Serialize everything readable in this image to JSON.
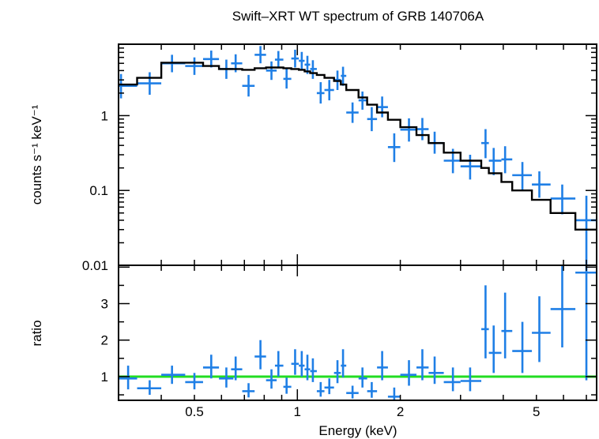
{
  "chart_data": [
    {
      "type": "scatter",
      "panel": "spectrum",
      "title": "Swift–XRT WT spectrum of GRB 140706A",
      "xlabel": "Energy (keV)",
      "ylabel": "counts s⁻¹ keV⁻¹",
      "xscale": "log",
      "yscale": "log",
      "xlim": [
        0.3,
        7.5
      ],
      "ylim": [
        0.01,
        9
      ],
      "y_ticks": [
        "0.01",
        "0.1",
        "1"
      ],
      "x_ticks": [
        "0.5",
        "1",
        "2",
        "5"
      ],
      "grid": false,
      "series": [
        {
          "kind": "data_with_errors",
          "color": "#1f7fe6",
          "points": [
            {
              "x": 0.305,
              "xlo": 0.3,
              "xhi": 0.34,
              "y": 2.5,
              "ylo": 1.7,
              "yhi": 3.6
            },
            {
              "x": 0.37,
              "xlo": 0.34,
              "xhi": 0.4,
              "y": 2.7,
              "ylo": 1.9,
              "yhi": 3.8
            },
            {
              "x": 0.43,
              "xlo": 0.4,
              "xhi": 0.47,
              "y": 5.0,
              "ylo": 3.8,
              "yhi": 6.5
            },
            {
              "x": 0.5,
              "xlo": 0.47,
              "xhi": 0.53,
              "y": 4.6,
              "ylo": 3.5,
              "yhi": 6.0
            },
            {
              "x": 0.56,
              "xlo": 0.53,
              "xhi": 0.59,
              "y": 5.7,
              "ylo": 4.4,
              "yhi": 7.4
            },
            {
              "x": 0.62,
              "xlo": 0.59,
              "xhi": 0.65,
              "y": 4.2,
              "ylo": 3.1,
              "yhi": 5.6
            },
            {
              "x": 0.66,
              "xlo": 0.64,
              "xhi": 0.69,
              "y": 5.0,
              "ylo": 3.8,
              "yhi": 6.6
            },
            {
              "x": 0.72,
              "xlo": 0.69,
              "xhi": 0.75,
              "y": 2.5,
              "ylo": 1.8,
              "yhi": 3.5
            },
            {
              "x": 0.78,
              "xlo": 0.75,
              "xhi": 0.81,
              "y": 6.5,
              "ylo": 5.0,
              "yhi": 8.5
            },
            {
              "x": 0.84,
              "xlo": 0.81,
              "xhi": 0.87,
              "y": 4.0,
              "ylo": 3.0,
              "yhi": 5.3
            },
            {
              "x": 0.88,
              "xlo": 0.86,
              "xhi": 0.91,
              "y": 5.6,
              "ylo": 4.3,
              "yhi": 7.3
            },
            {
              "x": 0.93,
              "xlo": 0.91,
              "xhi": 0.96,
              "y": 3.1,
              "ylo": 2.3,
              "yhi": 4.2
            },
            {
              "x": 0.985,
              "xlo": 0.96,
              "xhi": 1.01,
              "y": 5.8,
              "ylo": 4.4,
              "yhi": 7.6
            },
            {
              "x": 1.03,
              "xlo": 1.01,
              "xhi": 1.05,
              "y": 5.4,
              "ylo": 4.1,
              "yhi": 7.1
            },
            {
              "x": 1.07,
              "xlo": 1.05,
              "xhi": 1.09,
              "y": 4.8,
              "ylo": 3.6,
              "yhi": 6.3
            },
            {
              "x": 1.11,
              "xlo": 1.09,
              "xhi": 1.14,
              "y": 4.2,
              "ylo": 3.1,
              "yhi": 5.5
            },
            {
              "x": 1.17,
              "xlo": 1.14,
              "xhi": 1.2,
              "y": 2.0,
              "ylo": 1.45,
              "yhi": 2.8
            },
            {
              "x": 1.24,
              "xlo": 1.2,
              "xhi": 1.28,
              "y": 2.2,
              "ylo": 1.6,
              "yhi": 3.0
            },
            {
              "x": 1.31,
              "xlo": 1.28,
              "xhi": 1.34,
              "y": 3.0,
              "ylo": 2.2,
              "yhi": 4.0
            },
            {
              "x": 1.36,
              "xlo": 1.34,
              "xhi": 1.39,
              "y": 3.4,
              "ylo": 2.5,
              "yhi": 4.5
            },
            {
              "x": 1.45,
              "xlo": 1.39,
              "xhi": 1.51,
              "y": 1.1,
              "ylo": 0.8,
              "yhi": 1.5
            },
            {
              "x": 1.55,
              "xlo": 1.51,
              "xhi": 1.6,
              "y": 1.6,
              "ylo": 1.2,
              "yhi": 2.1
            },
            {
              "x": 1.65,
              "xlo": 1.6,
              "xhi": 1.71,
              "y": 0.9,
              "ylo": 0.62,
              "yhi": 1.3
            },
            {
              "x": 1.77,
              "xlo": 1.71,
              "xhi": 1.84,
              "y": 1.3,
              "ylo": 0.95,
              "yhi": 1.8
            },
            {
              "x": 1.92,
              "xlo": 1.84,
              "xhi": 2.0,
              "y": 0.38,
              "ylo": 0.24,
              "yhi": 0.58
            },
            {
              "x": 2.12,
              "xlo": 2.0,
              "xhi": 2.23,
              "y": 0.65,
              "ylo": 0.45,
              "yhi": 0.92
            },
            {
              "x": 2.32,
              "xlo": 2.23,
              "xhi": 2.42,
              "y": 0.66,
              "ylo": 0.47,
              "yhi": 0.93
            },
            {
              "x": 2.52,
              "xlo": 2.42,
              "xhi": 2.68,
              "y": 0.43,
              "ylo": 0.31,
              "yhi": 0.61
            },
            {
              "x": 2.85,
              "xlo": 2.68,
              "xhi": 3.0,
              "y": 0.25,
              "ylo": 0.17,
              "yhi": 0.36
            },
            {
              "x": 3.2,
              "xlo": 3.0,
              "xhi": 3.45,
              "y": 0.21,
              "ylo": 0.14,
              "yhi": 0.3
            },
            {
              "x": 3.55,
              "xlo": 3.45,
              "xhi": 3.63,
              "y": 0.43,
              "ylo": 0.27,
              "yhi": 0.66
            },
            {
              "x": 3.75,
              "xlo": 3.63,
              "xhi": 3.95,
              "y": 0.25,
              "ylo": 0.16,
              "yhi": 0.37
            },
            {
              "x": 4.05,
              "xlo": 3.95,
              "xhi": 4.25,
              "y": 0.26,
              "ylo": 0.17,
              "yhi": 0.39
            },
            {
              "x": 4.55,
              "xlo": 4.25,
              "xhi": 4.85,
              "y": 0.16,
              "ylo": 0.1,
              "yhi": 0.24
            },
            {
              "x": 5.1,
              "xlo": 4.85,
              "xhi": 5.5,
              "y": 0.12,
              "ylo": 0.08,
              "yhi": 0.18
            },
            {
              "x": 5.95,
              "xlo": 5.5,
              "xhi": 6.5,
              "y": 0.078,
              "ylo": 0.048,
              "yhi": 0.12
            },
            {
              "x": 7.0,
              "xlo": 6.5,
              "xhi": 7.5,
              "y": 0.04,
              "ylo": 0.01,
              "yhi": 0.085
            }
          ]
        },
        {
          "kind": "model_step",
          "color": "#000000",
          "edges": [
            0.3,
            0.34,
            0.4,
            0.53,
            0.59,
            0.69,
            0.75,
            0.81,
            0.86,
            0.91,
            0.96,
            1.01,
            1.05,
            1.09,
            1.14,
            1.2,
            1.28,
            1.34,
            1.39,
            1.51,
            1.6,
            1.71,
            1.84,
            2.0,
            2.23,
            2.42,
            2.68,
            3.0,
            3.45,
            3.63,
            3.95,
            4.25,
            4.85,
            5.5,
            6.5,
            7.5
          ],
          "values": [
            2.6,
            3.2,
            5.1,
            4.6,
            4.2,
            4.1,
            4.3,
            4.4,
            4.4,
            4.3,
            4.2,
            4.1,
            3.9,
            3.7,
            3.5,
            3.2,
            2.9,
            2.6,
            2.2,
            1.75,
            1.4,
            1.1,
            0.88,
            0.7,
            0.55,
            0.43,
            0.32,
            0.25,
            0.2,
            0.17,
            0.13,
            0.1,
            0.075,
            0.05,
            0.03
          ]
        }
      ]
    },
    {
      "type": "scatter",
      "panel": "ratio",
      "xlabel": "Energy (keV)",
      "ylabel": "ratio",
      "xscale": "log",
      "xlim": [
        0.3,
        7.5
      ],
      "ylim": [
        0.35,
        4.05
      ],
      "y_ticks": [
        "1",
        "2",
        "3"
      ],
      "x_ticks": [
        "0.5",
        "1",
        "2",
        "5"
      ],
      "reference_line": {
        "y": 1,
        "color": "#22dd22"
      },
      "series": [
        {
          "kind": "ratio_with_errors",
          "color": "#1f7fe6",
          "points": [
            {
              "x": 0.32,
              "xlo": 0.3,
              "xhi": 0.34,
              "y": 0.95,
              "ylo": 0.65,
              "yhi": 1.3
            },
            {
              "x": 0.37,
              "xlo": 0.34,
              "xhi": 0.4,
              "y": 0.68,
              "ylo": 0.5,
              "yhi": 0.9
            },
            {
              "x": 0.43,
              "xlo": 0.4,
              "xhi": 0.47,
              "y": 1.05,
              "ylo": 0.8,
              "yhi": 1.3
            },
            {
              "x": 0.5,
              "xlo": 0.47,
              "xhi": 0.53,
              "y": 0.85,
              "ylo": 0.65,
              "yhi": 1.1
            },
            {
              "x": 0.56,
              "xlo": 0.53,
              "xhi": 0.59,
              "y": 1.25,
              "ylo": 0.95,
              "yhi": 1.6
            },
            {
              "x": 0.62,
              "xlo": 0.59,
              "xhi": 0.65,
              "y": 0.95,
              "ylo": 0.7,
              "yhi": 1.25
            },
            {
              "x": 0.66,
              "xlo": 0.64,
              "xhi": 0.69,
              "y": 1.2,
              "ylo": 0.9,
              "yhi": 1.55
            },
            {
              "x": 0.72,
              "xlo": 0.69,
              "xhi": 0.75,
              "y": 0.6,
              "ylo": 0.43,
              "yhi": 0.82
            },
            {
              "x": 0.78,
              "xlo": 0.75,
              "xhi": 0.81,
              "y": 1.55,
              "ylo": 1.2,
              "yhi": 2.0
            },
            {
              "x": 0.84,
              "xlo": 0.81,
              "xhi": 0.87,
              "y": 0.9,
              "ylo": 0.67,
              "yhi": 1.2
            },
            {
              "x": 0.88,
              "xlo": 0.86,
              "xhi": 0.91,
              "y": 1.3,
              "ylo": 1.0,
              "yhi": 1.7
            },
            {
              "x": 0.93,
              "xlo": 0.91,
              "xhi": 0.96,
              "y": 0.72,
              "ylo": 0.53,
              "yhi": 0.97
            },
            {
              "x": 0.985,
              "xlo": 0.96,
              "xhi": 1.01,
              "y": 1.35,
              "ylo": 1.05,
              "yhi": 1.75
            },
            {
              "x": 1.03,
              "xlo": 1.01,
              "xhi": 1.05,
              "y": 1.3,
              "ylo": 1.0,
              "yhi": 1.7
            },
            {
              "x": 1.07,
              "xlo": 1.05,
              "xhi": 1.09,
              "y": 1.2,
              "ylo": 0.9,
              "yhi": 1.6
            },
            {
              "x": 1.11,
              "xlo": 1.09,
              "xhi": 1.14,
              "y": 1.15,
              "ylo": 0.85,
              "yhi": 1.5
            },
            {
              "x": 1.17,
              "xlo": 1.14,
              "xhi": 1.2,
              "y": 0.6,
              "ylo": 0.45,
              "yhi": 0.85
            },
            {
              "x": 1.24,
              "xlo": 1.2,
              "xhi": 1.28,
              "y": 0.7,
              "ylo": 0.52,
              "yhi": 0.95
            },
            {
              "x": 1.31,
              "xlo": 1.28,
              "xhi": 1.34,
              "y": 1.1,
              "ylo": 0.82,
              "yhi": 1.45
            },
            {
              "x": 1.36,
              "xlo": 1.34,
              "xhi": 1.39,
              "y": 1.3,
              "ylo": 0.98,
              "yhi": 1.75
            },
            {
              "x": 1.45,
              "xlo": 1.39,
              "xhi": 1.51,
              "y": 0.55,
              "ylo": 0.4,
              "yhi": 0.75
            },
            {
              "x": 1.55,
              "xlo": 1.51,
              "xhi": 1.6,
              "y": 0.95,
              "ylo": 0.7,
              "yhi": 1.25
            },
            {
              "x": 1.65,
              "xlo": 1.6,
              "xhi": 1.71,
              "y": 0.6,
              "ylo": 0.42,
              "yhi": 0.85
            },
            {
              "x": 1.77,
              "xlo": 1.71,
              "xhi": 1.84,
              "y": 1.25,
              "ylo": 0.9,
              "yhi": 1.7
            },
            {
              "x": 1.92,
              "xlo": 1.84,
              "xhi": 2.0,
              "y": 0.45,
              "ylo": 0.3,
              "yhi": 0.7
            },
            {
              "x": 2.12,
              "xlo": 2.0,
              "xhi": 2.23,
              "y": 1.05,
              "ylo": 0.75,
              "yhi": 1.45
            },
            {
              "x": 2.32,
              "xlo": 2.23,
              "xhi": 2.42,
              "y": 1.25,
              "ylo": 0.9,
              "yhi": 1.75
            },
            {
              "x": 2.52,
              "xlo": 2.42,
              "xhi": 2.68,
              "y": 1.1,
              "ylo": 0.8,
              "yhi": 1.55
            },
            {
              "x": 2.85,
              "xlo": 2.68,
              "xhi": 3.0,
              "y": 0.85,
              "ylo": 0.6,
              "yhi": 1.25
            },
            {
              "x": 3.2,
              "xlo": 3.0,
              "xhi": 3.45,
              "y": 0.88,
              "ylo": 0.6,
              "yhi": 1.25
            },
            {
              "x": 3.55,
              "xlo": 3.45,
              "xhi": 3.63,
              "y": 2.3,
              "ylo": 1.5,
              "yhi": 3.5
            },
            {
              "x": 3.75,
              "xlo": 3.63,
              "xhi": 3.95,
              "y": 1.65,
              "ylo": 1.1,
              "yhi": 2.4
            },
            {
              "x": 4.05,
              "xlo": 3.95,
              "xhi": 4.25,
              "y": 2.25,
              "ylo": 1.5,
              "yhi": 3.3
            },
            {
              "x": 4.55,
              "xlo": 4.25,
              "xhi": 4.85,
              "y": 1.7,
              "ylo": 1.1,
              "yhi": 2.5
            },
            {
              "x": 5.1,
              "xlo": 4.85,
              "xhi": 5.5,
              "y": 2.2,
              "ylo": 1.4,
              "yhi": 3.2
            },
            {
              "x": 5.95,
              "xlo": 5.5,
              "xhi": 6.5,
              "y": 2.85,
              "ylo": 1.8,
              "yhi": 4.05
            },
            {
              "x": 7.0,
              "xlo": 6.5,
              "xhi": 7.5,
              "y": 3.85,
              "ylo": 0.9,
              "yhi": 4.05
            }
          ]
        }
      ]
    }
  ]
}
